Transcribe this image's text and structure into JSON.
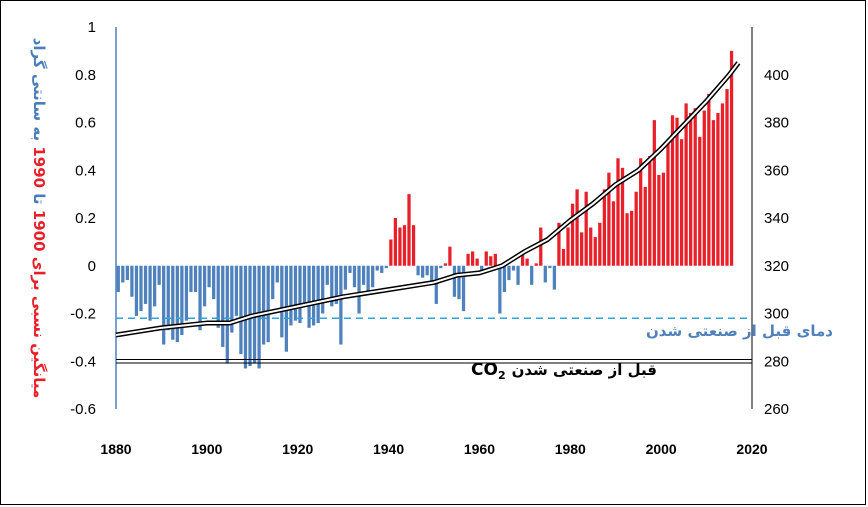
{
  "chart_data": {
    "type": "bar",
    "title": "",
    "ylabel_parts": [
      {
        "text": "میانگین نسبی برای 1900",
        "color": "#e8202a"
      },
      {
        "text": " تا ",
        "color": "#4a7ebb"
      },
      {
        "text": "1990",
        "color": "#e8202a"
      },
      {
        "text": " به سانتی گراد",
        "color": "#4a7ebb"
      }
    ],
    "xlim": [
      1880,
      2020
    ],
    "x_ticks": [
      "1880",
      "1900",
      "1920",
      "1940",
      "1960",
      "1980",
      "2000",
      "2020"
    ],
    "ylim_left": [
      -0.6,
      1
    ],
    "y_ticks_left": [
      "1",
      "0.8",
      "0.6",
      "0.4",
      "0.2",
      "0",
      "-0.2",
      "-0.4",
      "-0.6"
    ],
    "ylim_right": [
      260,
      420
    ],
    "y_ticks_right": [
      "400",
      "380",
      "360",
      "340",
      "320",
      "300",
      "280",
      "260"
    ],
    "colors": {
      "positive": "#e8202a",
      "negative": "#4f81bd",
      "preindustrial_temp": "#2aa6dc",
      "co2": "#000000"
    },
    "temperature_anomaly": {
      "start_year": 1880,
      "values": [
        -0.11,
        -0.07,
        -0.06,
        -0.13,
        -0.21,
        -0.19,
        -0.16,
        -0.23,
        -0.17,
        -0.08,
        -0.33,
        -0.27,
        -0.31,
        -0.32,
        -0.29,
        -0.23,
        -0.11,
        -0.11,
        -0.27,
        -0.17,
        -0.09,
        -0.14,
        -0.26,
        -0.34,
        -0.41,
        -0.28,
        -0.21,
        -0.37,
        -0.43,
        -0.42,
        -0.41,
        -0.43,
        -0.33,
        -0.32,
        -0.14,
        -0.07,
        -0.3,
        -0.36,
        -0.25,
        -0.23,
        -0.24,
        -0.16,
        -0.26,
        -0.25,
        -0.24,
        -0.2,
        -0.08,
        -0.17,
        -0.16,
        -0.33,
        -0.1,
        -0.03,
        -0.09,
        -0.2,
        -0.08,
        -0.12,
        -0.09,
        -0.02,
        -0.03,
        -0.01,
        0.11,
        0.2,
        0.16,
        0.17,
        0.3,
        0.17,
        -0.04,
        -0.05,
        -0.04,
        -0.07,
        -0.16,
        -0.01,
        0.01,
        0.08,
        -0.13,
        -0.14,
        -0.19,
        0.05,
        0.06,
        0.03,
        -0.02,
        0.06,
        0.04,
        0.05,
        -0.2,
        -0.11,
        -0.06,
        -0.02,
        -0.08,
        0.05,
        0.03,
        -0.08,
        0.01,
        0.16,
        -0.07,
        -0.01,
        -0.1,
        0.18,
        0.07,
        0.16,
        0.26,
        0.32,
        0.14,
        0.31,
        0.16,
        0.12,
        0.18,
        0.32,
        0.39,
        0.27,
        0.45,
        0.41,
        0.22,
        0.23,
        0.31,
        0.45,
        0.33,
        0.46,
        0.61,
        0.38,
        0.39,
        0.53,
        0.63,
        0.62,
        0.53,
        0.68,
        0.64,
        0.66,
        0.54,
        0.65,
        0.72,
        0.61,
        0.64,
        0.68,
        0.74,
        0.9
      ],
      "preindustrial_level": -0.22,
      "preindustrial_label": "دمای قبل از صنعتی شدن"
    },
    "co2": {
      "years": [
        1880,
        1890,
        1900,
        1905,
        1910,
        1920,
        1930,
        1940,
        1950,
        1955,
        1960,
        1965,
        1970,
        1975,
        1980,
        1985,
        1990,
        1995,
        2000,
        2005,
        2010,
        2015,
        2017
      ],
      "ppm": [
        291,
        294,
        296,
        296,
        299,
        303,
        307,
        310,
        313,
        316,
        317,
        320,
        326,
        331,
        339,
        346,
        354,
        360,
        369,
        379,
        389,
        400,
        405
      ],
      "preindustrial_level": 280,
      "preindustrial_label": "قبل از صنعتی شدن",
      "preindustrial_label_prefix": "CO",
      "preindustrial_label_sub": "2"
    }
  }
}
